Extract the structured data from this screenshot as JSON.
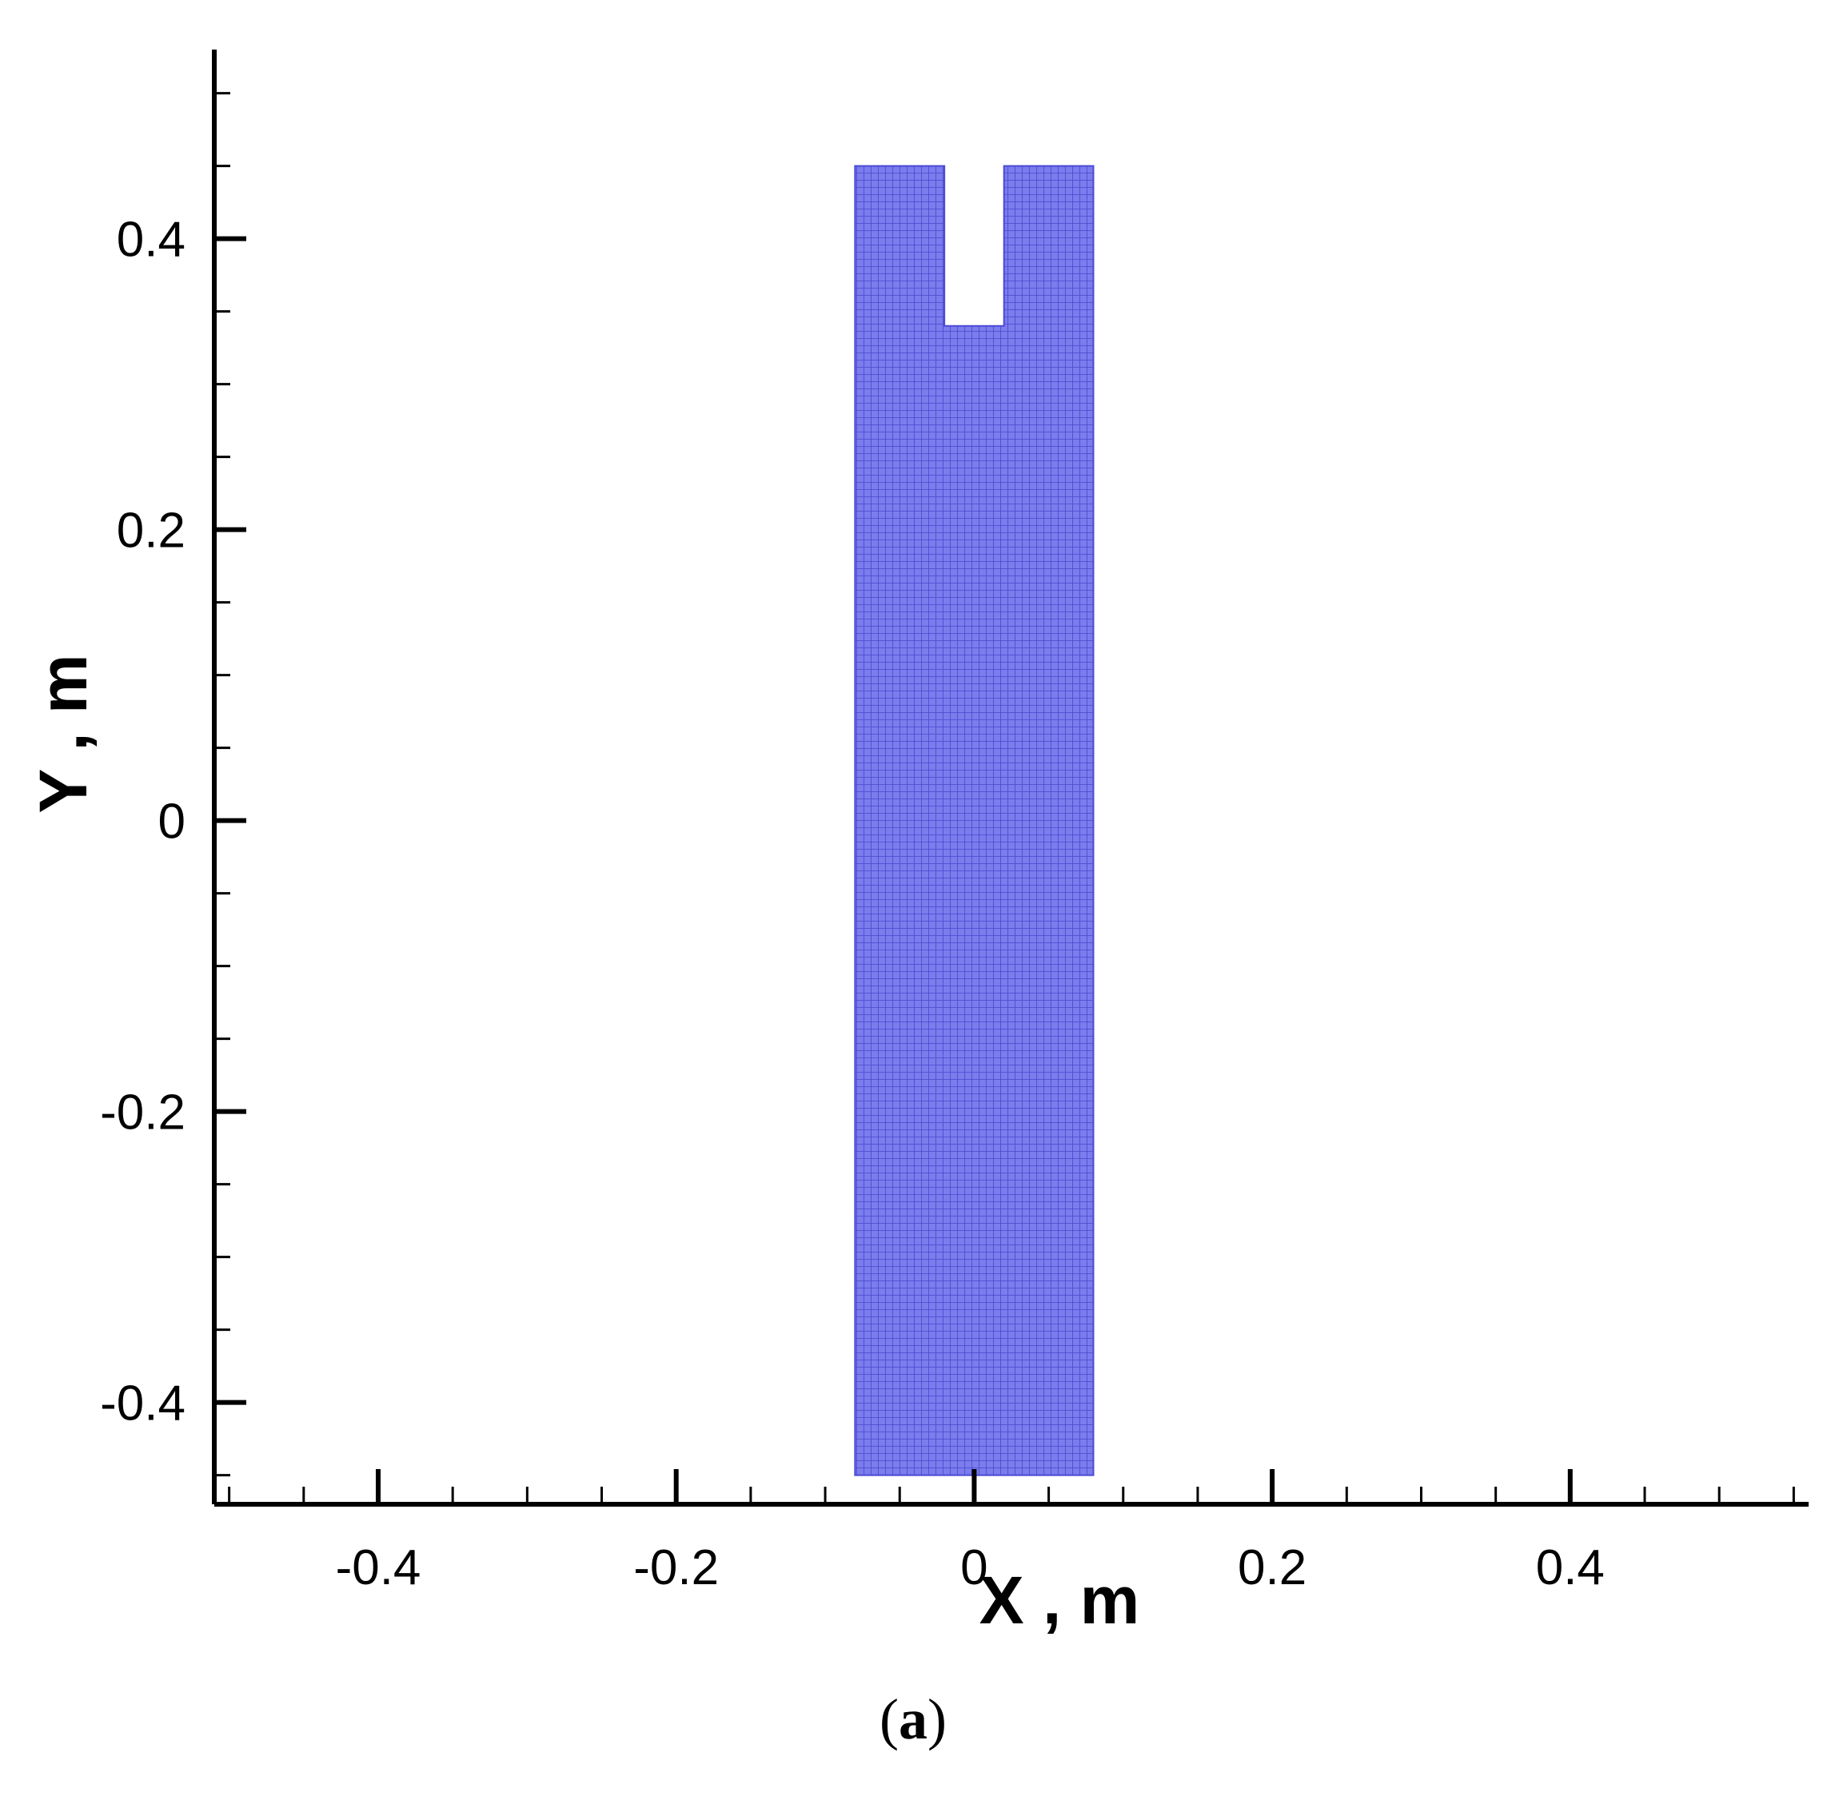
{
  "chart_data": {
    "type": "mesh",
    "xlabel": "X , m",
    "ylabel": "Y , m",
    "xlim": [
      -0.51,
      0.56
    ],
    "ylim": [
      -0.47,
      0.53
    ],
    "x_ticks": [
      "-0.4",
      "-0.2",
      "0",
      "0.2",
      "0.4"
    ],
    "x_tick_values": [
      -0.4,
      -0.2,
      0,
      0.2,
      0.4
    ],
    "y_ticks": [
      "0.4",
      "0.2",
      "0",
      "-0.2",
      "-0.4"
    ],
    "y_tick_values": [
      0.4,
      0.2,
      0,
      -0.2,
      -0.4
    ],
    "x_minor_step": 0.05,
    "y_minor_step": 0.05,
    "domain": {
      "x_range": [
        -0.08,
        0.08
      ],
      "y_range": [
        -0.45,
        0.45
      ],
      "notch": {
        "x_range": [
          -0.02,
          0.02
        ],
        "y_range": [
          0.34,
          0.45
        ]
      }
    },
    "mesh_color": "#7777ee",
    "mesh_line_color": "#4a4ad6",
    "grid": false
  },
  "caption": {
    "open": "(",
    "letter": "a",
    "close": ")"
  }
}
